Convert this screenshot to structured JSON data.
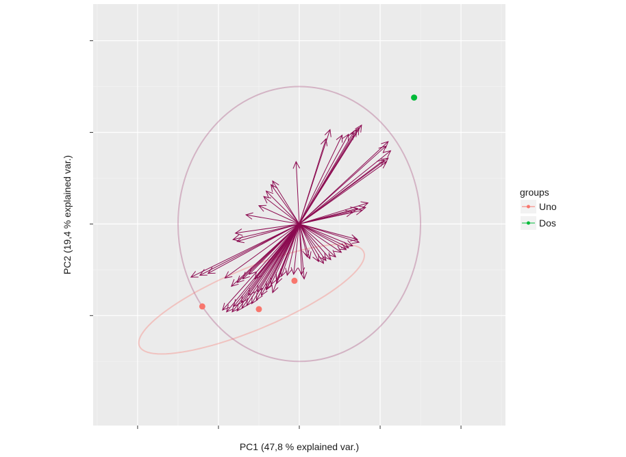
{
  "chart_data": {
    "type": "scatter",
    "subtype": "pca-biplot",
    "xlabel": "PC1 (47,8 % explained var.)",
    "ylabel": "PC2 (19,4 % explained var.)",
    "xlim": [
      -2.55,
      2.55
    ],
    "ylim": [
      -2.2,
      2.4
    ],
    "x_ticks": [
      -2.0,
      -1.0,
      0.0,
      1.0,
      2.0
    ],
    "y_ticks": [
      -1.0,
      0.0,
      1.0,
      2.0
    ],
    "tick_labels_visible": false,
    "grid": true,
    "legend": {
      "title": "groups",
      "position": "right",
      "entries": [
        {
          "label": "Uno",
          "color": "#F8766D"
        },
        {
          "label": "Dos",
          "color": "#00BA38"
        }
      ]
    },
    "series": [
      {
        "name": "Uno",
        "color": "#F8766D",
        "points": [
          {
            "x": -1.2,
            "y": -0.9
          },
          {
            "x": -0.5,
            "y": -0.93
          },
          {
            "x": -0.06,
            "y": -0.62
          }
        ]
      },
      {
        "name": "Dos",
        "color": "#00BA38",
        "points": [
          {
            "x": 1.42,
            "y": 1.38
          }
        ]
      }
    ],
    "ellipses": [
      {
        "group": "Uno",
        "color": "#F8766D",
        "cx": -0.59,
        "cy": -0.82,
        "rx": 1.48,
        "ry": 0.34,
        "angle_deg": 20
      }
    ],
    "correlation_circle": {
      "cx": 0.0,
      "cy": 0.0,
      "r": 1.5,
      "color": "#8B0A50"
    },
    "arrow_color": "#8B0A50",
    "loadings": [
      [
        0.38,
        1.03
      ],
      [
        0.33,
        0.93
      ],
      [
        0.77,
        1.08
      ],
      [
        0.74,
        1.05
      ],
      [
        0.71,
        1.03
      ],
      [
        0.67,
        1.0
      ],
      [
        0.61,
        0.98
      ],
      [
        0.53,
        0.97
      ],
      [
        1.1,
        0.9
      ],
      [
        1.07,
        0.85
      ],
      [
        1.13,
        0.8
      ],
      [
        1.1,
        0.72
      ],
      [
        1.08,
        0.68
      ],
      [
        1.05,
        0.7
      ],
      [
        -0.04,
        0.68
      ],
      [
        -0.33,
        0.47
      ],
      [
        -0.35,
        0.43
      ],
      [
        -0.41,
        0.36
      ],
      [
        -0.44,
        0.3
      ],
      [
        -0.5,
        0.2
      ],
      [
        0.85,
        0.23
      ],
      [
        0.82,
        0.18
      ],
      [
        0.78,
        0.15
      ],
      [
        0.72,
        0.17
      ],
      [
        0.66,
        0.13
      ],
      [
        -0.66,
        0.1
      ],
      [
        -0.79,
        -0.1
      ],
      [
        -0.82,
        -0.17
      ],
      [
        -0.77,
        -0.19
      ],
      [
        -1.34,
        -0.58
      ],
      [
        -1.23,
        -0.56
      ],
      [
        -1.13,
        -0.54
      ],
      [
        0.72,
        -0.17
      ],
      [
        0.74,
        -0.2
      ],
      [
        0.66,
        -0.24
      ],
      [
        0.61,
        -0.26
      ],
      [
        0.58,
        -0.28
      ],
      [
        0.52,
        -0.31
      ],
      [
        0.45,
        -0.36
      ],
      [
        0.39,
        -0.39
      ],
      [
        0.33,
        -0.4
      ],
      [
        0.3,
        -0.43
      ],
      [
        0.24,
        -0.41
      ],
      [
        0.13,
        -0.38
      ],
      [
        0.1,
        -0.36
      ],
      [
        0.03,
        -0.55
      ],
      [
        0.06,
        -0.6
      ],
      [
        -0.07,
        -0.55
      ],
      [
        -0.15,
        -0.56
      ],
      [
        -0.22,
        -0.57
      ],
      [
        -0.28,
        -0.61
      ],
      [
        -0.35,
        -0.66
      ],
      [
        -0.41,
        -0.72
      ],
      [
        -0.47,
        -0.78
      ],
      [
        -0.53,
        -0.83
      ],
      [
        -0.59,
        -0.87
      ],
      [
        -0.65,
        -0.89
      ],
      [
        -0.71,
        -0.92
      ],
      [
        -0.77,
        -0.95
      ],
      [
        -0.83,
        -0.96
      ],
      [
        -0.9,
        -0.96
      ],
      [
        -0.95,
        -0.94
      ],
      [
        -0.81,
        -0.9
      ],
      [
        -0.72,
        -0.86
      ],
      [
        -0.63,
        -0.78
      ],
      [
        -0.52,
        -0.74
      ],
      [
        -0.41,
        -0.71
      ],
      [
        -0.33,
        -0.75
      ],
      [
        -0.28,
        -0.65
      ],
      [
        -0.55,
        -0.6
      ],
      [
        -0.62,
        -0.55
      ],
      [
        -0.7,
        -0.6
      ],
      [
        -0.77,
        -0.64
      ],
      [
        -0.84,
        -0.68
      ],
      [
        -0.92,
        -0.59
      ]
    ]
  }
}
